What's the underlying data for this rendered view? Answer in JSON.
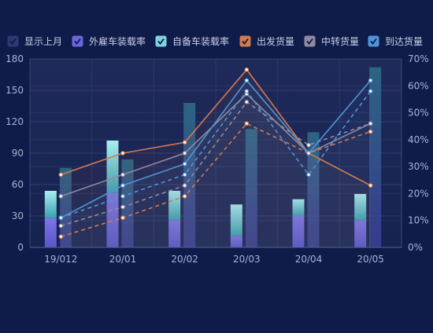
{
  "colors": {
    "background": "#0f1b48",
    "grid": "#3b4778",
    "axis_text": "#a9b3d6",
    "legend_text": "#c9d1ee",
    "plot_bg_top": "#1f2a5b",
    "plot_bg_bottom": "#16224f"
  },
  "chart_data": {
    "type": "bar",
    "categories": [
      "19/012",
      "20/01",
      "20/02",
      "20/03",
      "20/04",
      "20/05"
    ],
    "y_left": {
      "min": 0,
      "max": 180,
      "ticks": [
        "0",
        "30",
        "60",
        "90",
        "120",
        "150",
        "180"
      ]
    },
    "y_right": {
      "min": 0,
      "max": 70,
      "ticks": [
        "0%",
        "10%",
        "20%",
        "30%",
        "40%",
        "50%",
        "60%",
        "70%"
      ]
    },
    "grid": true,
    "legend_position": "top",
    "legend": [
      {
        "name": "显示上月",
        "color": "#2d3874",
        "type": "checkbox"
      },
      {
        "name": "外雇车装载率",
        "color": "#6a66d8",
        "type": "checkbox"
      },
      {
        "name": "自备车装载率",
        "color": "#7ed4dc",
        "type": "checkbox"
      },
      {
        "name": "出发货量",
        "color": "#d27a4e",
        "type": "checkbox"
      },
      {
        "name": "中转货量",
        "color": "#8f8aa0",
        "type": "checkbox"
      },
      {
        "name": "到达货量",
        "color": "#4f95d5",
        "type": "checkbox"
      }
    ],
    "bar_series": [
      {
        "name": "外雇车装载率",
        "axis": "left",
        "current": [
          28,
          52,
          26,
          11,
          30,
          26
        ],
        "total": [
          54,
          102,
          54,
          41,
          46,
          51
        ],
        "previous": [
          76,
          84,
          138,
          113,
          110,
          172
        ]
      }
    ],
    "bar_colors": {
      "segment_bottom": "#6a66d8",
      "segment_top": "#7ed4dc",
      "previous_top": "#2f6e8a",
      "previous_bottom": "#3c3f96"
    },
    "line_series": [
      {
        "name": "出发货量",
        "axis": "right",
        "style": "solid",
        "color": "#d27a4e",
        "values": [
          27,
          35,
          39,
          66,
          35,
          23
        ]
      },
      {
        "name": "出发货量(上月)",
        "axis": "right",
        "style": "dashed",
        "color": "#d27a4e",
        "values": [
          4,
          11,
          19,
          46,
          35,
          43
        ]
      },
      {
        "name": "中转货量",
        "axis": "right",
        "style": "solid",
        "color": "#8f8aa0",
        "values": [
          19,
          27,
          35,
          57,
          35,
          46
        ]
      },
      {
        "name": "中转货量(上月)",
        "axis": "right",
        "style": "dashed",
        "color": "#8f8aa0",
        "values": [
          8,
          15,
          23,
          54,
          38,
          46
        ]
      },
      {
        "name": "到达货量",
        "axis": "right",
        "style": "solid",
        "color": "#4f95d5",
        "values": [
          11,
          23,
          31,
          62,
          35,
          62
        ]
      },
      {
        "name": "到达货量(上月)",
        "axis": "right",
        "style": "dashed",
        "color": "#4f95d5",
        "values": [
          11,
          19,
          27,
          58,
          27,
          58
        ]
      }
    ]
  }
}
